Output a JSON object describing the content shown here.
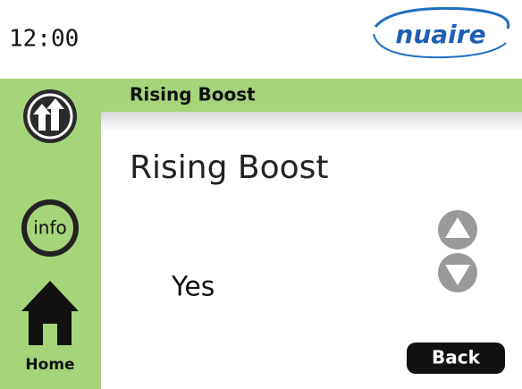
{
  "status_bar": {
    "time": "12:00",
    "logo": "nuaire"
  },
  "sidebar": {
    "info_icon": "info",
    "home": "Home"
  },
  "header_bar": {
    "title": "Rising Boost"
  },
  "content": {
    "title": "Rising Boost",
    "value": "Yes",
    "back_button": "Back"
  }
}
